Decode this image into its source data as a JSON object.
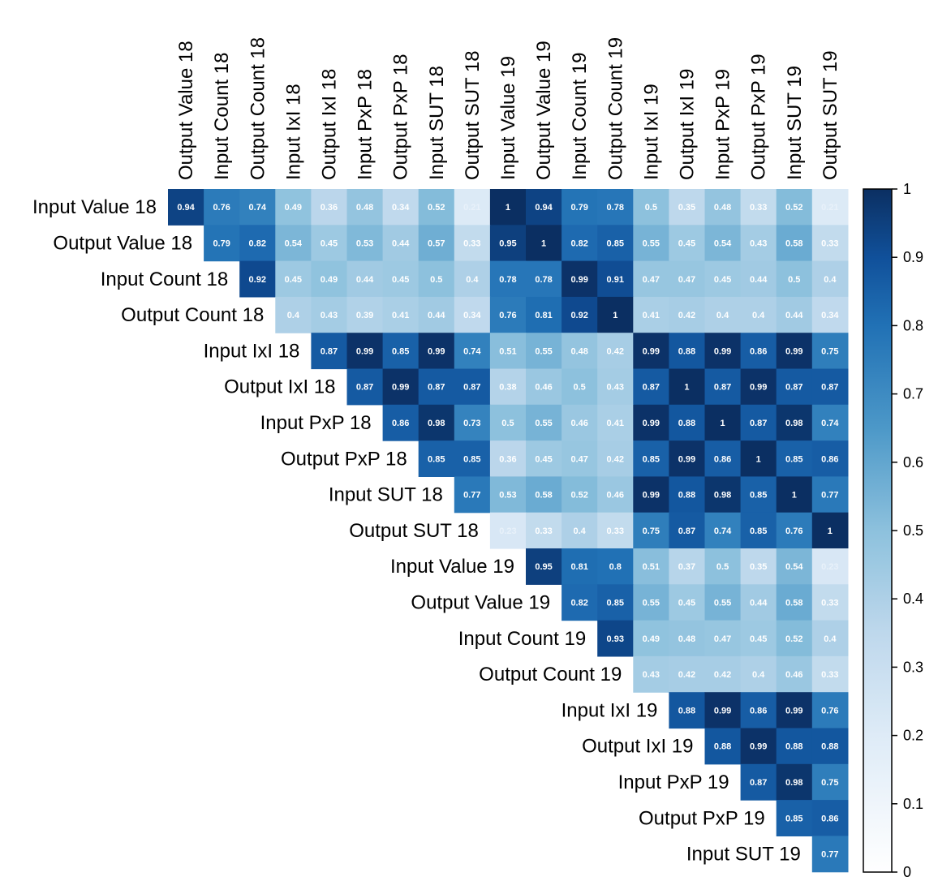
{
  "chart_data": {
    "type": "heatmap",
    "title": "",
    "row_labels": [
      "Input Value 18",
      "Output Value 18",
      "Input Count 18",
      "Output Count 18",
      "Input IxI 18",
      "Output IxI 18",
      "Input PxP 18",
      "Output PxP 18",
      "Input SUT 18",
      "Output SUT 18",
      "Input Value 19",
      "Output Value 19",
      "Input Count 19",
      "Output Count 19",
      "Input IxI 19",
      "Output IxI 19",
      "Input PxP 19",
      "Output PxP 19",
      "Input SUT 19"
    ],
    "col_labels": [
      "Output Value 18",
      "Input Count 18",
      "Output Count 18",
      "Input IxI 18",
      "Output IxI 18",
      "Input PxP 18",
      "Output PxP 18",
      "Input SUT 18",
      "Output SUT 18",
      "Input Value 19",
      "Output Value 19",
      "Input Count 19",
      "Output Count 19",
      "Input IxI 19",
      "Output IxI 19",
      "Input PxP 19",
      "Output PxP 19",
      "Input SUT 19",
      "Output SUT 19"
    ],
    "rows": [
      [
        "0.94",
        "0.76",
        "0.74",
        "0.49",
        "0.36",
        "0.48",
        "0.34",
        "0.52",
        "0.21",
        "1",
        "0.94",
        "0.79",
        "0.78",
        "0.5",
        "0.35",
        "0.48",
        "0.33",
        "0.52",
        "0.21"
      ],
      [
        "0.79",
        "0.82",
        "0.54",
        "0.45",
        "0.53",
        "0.44",
        "0.57",
        "0.33",
        "0.95",
        "1",
        "0.82",
        "0.85",
        "0.55",
        "0.45",
        "0.54",
        "0.43",
        "0.58",
        "0.33"
      ],
      [
        "0.92",
        "0.45",
        "0.49",
        "0.44",
        "0.45",
        "0.5",
        "0.4",
        "0.78",
        "0.78",
        "0.99",
        "0.91",
        "0.47",
        "0.47",
        "0.45",
        "0.44",
        "0.5",
        "0.4"
      ],
      [
        "0.4",
        "0.43",
        "0.39",
        "0.41",
        "0.44",
        "0.34",
        "0.76",
        "0.81",
        "0.92",
        "1",
        "0.41",
        "0.42",
        "0.4",
        "0.4",
        "0.44",
        "0.34"
      ],
      [
        "0.87",
        "0.99",
        "0.85",
        "0.99",
        "0.74",
        "0.51",
        "0.55",
        "0.48",
        "0.42",
        "0.99",
        "0.88",
        "0.99",
        "0.86",
        "0.99",
        "0.75"
      ],
      [
        "0.87",
        "0.99",
        "0.87",
        "0.87",
        "0.38",
        "0.46",
        "0.5",
        "0.43",
        "0.87",
        "1",
        "0.87",
        "0.99",
        "0.87",
        "0.87"
      ],
      [
        "0.86",
        "0.98",
        "0.73",
        "0.5",
        "0.55",
        "0.46",
        "0.41",
        "0.99",
        "0.88",
        "1",
        "0.87",
        "0.98",
        "0.74"
      ],
      [
        "0.85",
        "0.85",
        "0.36",
        "0.45",
        "0.47",
        "0.42",
        "0.85",
        "0.99",
        "0.86",
        "1",
        "0.85",
        "0.86"
      ],
      [
        "0.77",
        "0.53",
        "0.58",
        "0.52",
        "0.46",
        "0.99",
        "0.88",
        "0.98",
        "0.85",
        "1",
        "0.77"
      ],
      [
        "0.23",
        "0.33",
        "0.4",
        "0.33",
        "0.75",
        "0.87",
        "0.74",
        "0.85",
        "0.76",
        "1"
      ],
      [
        "0.95",
        "0.81",
        "0.8",
        "0.51",
        "0.37",
        "0.5",
        "0.35",
        "0.54",
        "0.23"
      ],
      [
        "0.82",
        "0.85",
        "0.55",
        "0.45",
        "0.55",
        "0.44",
        "0.58",
        "0.33"
      ],
      [
        "0.93",
        "0.49",
        "0.48",
        "0.47",
        "0.45",
        "0.52",
        "0.4"
      ],
      [
        "0.43",
        "0.42",
        "0.42",
        "0.4",
        "0.46",
        "0.33"
      ],
      [
        "0.88",
        "0.99",
        "0.86",
        "0.99",
        "0.76"
      ],
      [
        "0.88",
        "0.99",
        "0.88",
        "0.88"
      ],
      [
        "0.87",
        "0.98",
        "0.75"
      ],
      [
        "0.85",
        "0.86"
      ],
      [
        "0.77"
      ]
    ],
    "color_scale": {
      "range": [
        0,
        1
      ],
      "low_color": "#ffffff",
      "high_color": "#0b2f62",
      "ticks": [
        "1",
        "0.9",
        "0.8",
        "0.7",
        "0.6",
        "0.5",
        "0.4",
        "0.3",
        "0.2",
        "0.1",
        "0"
      ]
    },
    "legend_position": "right",
    "grid": false
  }
}
